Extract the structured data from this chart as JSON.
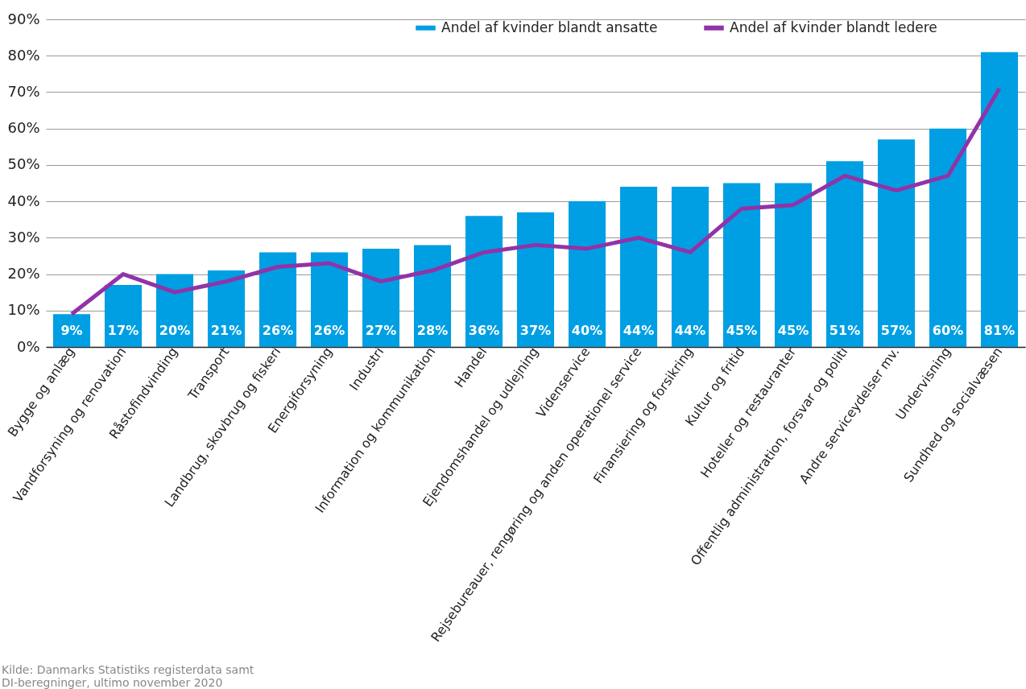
{
  "chart_data": {
    "type": "bar",
    "categories": [
      "Bygge og anlæg",
      "Vandforsyning og renovation",
      "Råstofindvinding",
      "Transport",
      "Landbrug, skovbrug og fiskeri",
      "Energiforsyning",
      "Industri",
      "Information og kommunikation",
      "Handel",
      "Ejendomshandel og udlejning",
      "Videnservice",
      "Rejsebureauer, rengøring og anden operationel service",
      "Finansiering og forsikring",
      "Kultur og fritid",
      "Hoteller og restauranter",
      "Offentlig administration, forsvar og politi",
      "Andre serviceydelser mv.",
      "Undervisning",
      "Sundhed og socialvæsen"
    ],
    "series": [
      {
        "name": "Andel af kvinder blandt ansatte",
        "color": "#009fe3",
        "values": [
          9,
          17,
          20,
          21,
          26,
          26,
          27,
          28,
          36,
          37,
          40,
          44,
          44,
          45,
          45,
          51,
          57,
          60,
          81
        ],
        "value_labels": [
          "9%",
          "17%",
          "20%",
          "21%",
          "26%",
          "26%",
          "27%",
          "28%",
          "36%",
          "37%",
          "40%",
          "44%",
          "44%",
          "45%",
          "45%",
          "51%",
          "57%",
          "60%",
          "81%"
        ]
      },
      {
        "name": "Andel af kvinder blandt ledere",
        "type": "line",
        "color": "#9133a8",
        "values": [
          9,
          20,
          15,
          18,
          22,
          23,
          18,
          21,
          26,
          28,
          27,
          30,
          26,
          38,
          39,
          47,
          43,
          47,
          71
        ]
      }
    ],
    "ylim": [
      0,
      90
    ],
    "yticks": [
      {
        "value": 0,
        "label": "0%"
      },
      {
        "value": 10,
        "label": "10%"
      },
      {
        "value": 20,
        "label": "20%"
      },
      {
        "value": 30,
        "label": "30%"
      },
      {
        "value": 40,
        "label": "40%"
      },
      {
        "value": 50,
        "label": "50%"
      },
      {
        "value": 60,
        "label": "60%"
      },
      {
        "value": 70,
        "label": "70%"
      },
      {
        "value": 80,
        "label": "80%"
      },
      {
        "value": 90,
        "label": "90%"
      }
    ],
    "grid": "y",
    "legend": "top right",
    "marker": "none",
    "line_style": "solid",
    "annotations": [
      "Kilde: Danmarks Statistiks registerdata samt DI-beregninger, ultimo november 2020"
    ]
  }
}
